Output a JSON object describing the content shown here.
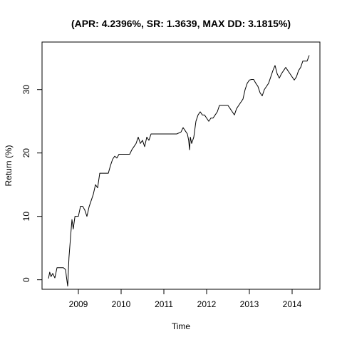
{
  "chart_data": {
    "type": "line",
    "title": "(APR: 4.2396%, SR: 1.3639, MAX DD: 3.1815%)",
    "xlabel": "Time",
    "ylabel": "Return (%)",
    "xlim": [
      2008.15,
      2014.65
    ],
    "ylim": [
      -1.5,
      37.5
    ],
    "x_ticks": [
      2009,
      2010,
      2011,
      2012,
      2013,
      2014
    ],
    "x_tick_labels": [
      "2009",
      "2010",
      "2011",
      "2012",
      "2013",
      "2014"
    ],
    "y_ticks": [
      0,
      10,
      20,
      30
    ],
    "y_tick_labels": [
      "0",
      "10",
      "20",
      "30"
    ],
    "grid": false,
    "series": [
      {
        "color": "#000000",
        "x": [
          2008.3,
          2008.33,
          2008.36,
          2008.4,
          2008.45,
          2008.5,
          2008.55,
          2008.6,
          2008.65,
          2008.7,
          2008.72,
          2008.75,
          2008.78,
          2008.82,
          2008.85,
          2008.88,
          2008.92,
          2008.95,
          2009.0,
          2009.05,
          2009.1,
          2009.15,
          2009.2,
          2009.25,
          2009.3,
          2009.35,
          2009.4,
          2009.45,
          2009.5,
          2009.55,
          2009.6,
          2009.65,
          2009.7,
          2009.75,
          2009.8,
          2009.85,
          2009.9,
          2009.95,
          2010.0,
          2010.1,
          2010.2,
          2010.25,
          2010.3,
          2010.35,
          2010.4,
          2010.45,
          2010.5,
          2010.55,
          2010.6,
          2010.65,
          2010.7,
          2010.8,
          2010.9,
          2011.0,
          2011.1,
          2011.2,
          2011.3,
          2011.4,
          2011.45,
          2011.5,
          2011.55,
          2011.58,
          2011.6,
          2011.62,
          2011.65,
          2011.7,
          2011.75,
          2011.8,
          2011.85,
          2011.9,
          2011.95,
          2012.0,
          2012.05,
          2012.1,
          2012.15,
          2012.2,
          2012.25,
          2012.3,
          2012.4,
          2012.5,
          2012.55,
          2012.6,
          2012.65,
          2012.7,
          2012.75,
          2012.8,
          2012.85,
          2012.9,
          2012.95,
          2013.0,
          2013.05,
          2013.1,
          2013.15,
          2013.2,
          2013.25,
          2013.3,
          2013.35,
          2013.4,
          2013.45,
          2013.5,
          2013.55,
          2013.6,
          2013.65,
          2013.7,
          2013.75,
          2013.8,
          2013.85,
          2013.9,
          2013.95,
          2014.0,
          2014.05,
          2014.1,
          2014.15,
          2014.2,
          2014.25,
          2014.3,
          2014.35,
          2014.4
        ],
        "y": [
          0.2,
          1.2,
          0.5,
          1.0,
          0.3,
          1.9,
          1.9,
          1.9,
          1.9,
          1.6,
          0.5,
          -1.0,
          3.5,
          7.0,
          9.5,
          8.0,
          10.0,
          10.0,
          10.0,
          11.6,
          11.6,
          11.0,
          10.0,
          11.5,
          12.5,
          13.5,
          15.0,
          14.5,
          16.8,
          16.8,
          16.8,
          16.8,
          16.8,
          18.0,
          19.0,
          19.5,
          19.2,
          19.8,
          19.8,
          19.8,
          19.8,
          20.5,
          21.0,
          21.5,
          22.5,
          21.5,
          22.0,
          21.0,
          22.5,
          22.0,
          23.0,
          23.0,
          23.0,
          23.0,
          23.0,
          23.0,
          23.0,
          23.3,
          24.0,
          23.5,
          23.0,
          22.0,
          20.5,
          22.5,
          21.5,
          22.5,
          25.0,
          26.0,
          26.5,
          26.0,
          26.0,
          25.5,
          25.0,
          25.5,
          25.5,
          26.0,
          26.5,
          27.5,
          27.5,
          27.5,
          27.0,
          26.5,
          26.0,
          27.0,
          27.5,
          28.0,
          28.5,
          30.0,
          31.0,
          31.5,
          31.6,
          31.6,
          31.0,
          30.5,
          29.5,
          29.0,
          30.0,
          30.5,
          31.0,
          32.0,
          33.0,
          33.8,
          32.5,
          31.8,
          32.5,
          33.0,
          33.5,
          33.0,
          32.5,
          32.0,
          31.5,
          32.0,
          33.0,
          33.5,
          34.5,
          34.5,
          34.5,
          35.4
        ]
      }
    ]
  }
}
